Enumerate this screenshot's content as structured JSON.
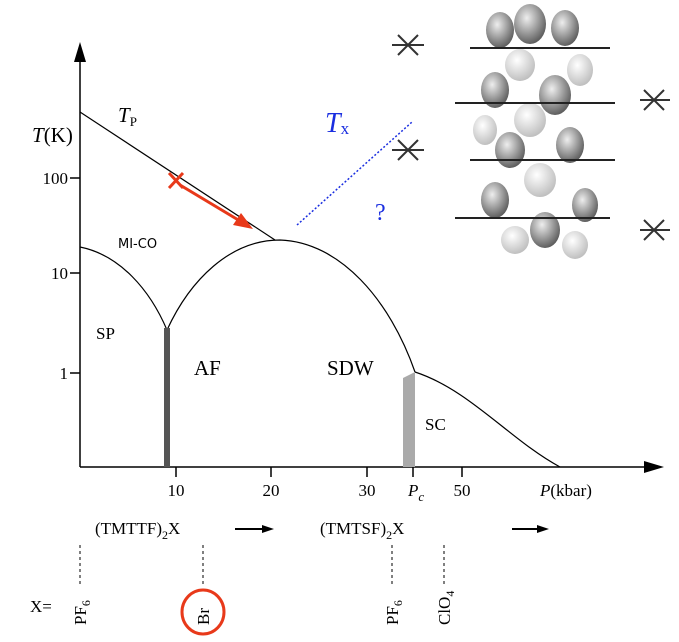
{
  "axes": {
    "y_label": {
      "main": "T",
      "unit": "(K)"
    },
    "y_ticks": [
      "100",
      "10",
      "1"
    ],
    "x_ticks": [
      "10",
      "20",
      "30",
      "50"
    ],
    "pc": {
      "main": "P",
      "sub": "c"
    },
    "x_label": {
      "main": "P",
      "unit": "(kbar)"
    }
  },
  "curves": {
    "tp": {
      "main": "T",
      "sub": "P"
    },
    "tx": {
      "main": "T",
      "sub": "x"
    },
    "question": "?"
  },
  "regions": [
    "MI-CO",
    "SP",
    "AF",
    "SDW",
    "SC"
  ],
  "compounds": [
    {
      "prefix": "(TMTTF)",
      "sub": "2",
      "suffix": "X"
    },
    {
      "prefix": "(TMTSF)",
      "sub": "2",
      "suffix": "X"
    }
  ],
  "anions_label": "X=",
  "anions": [
    {
      "main": "PF",
      "sub": "6"
    },
    {
      "main": "Br"
    },
    {
      "main": "PF",
      "sub": "6"
    },
    {
      "main": "ClO",
      "sub": "4"
    }
  ]
}
